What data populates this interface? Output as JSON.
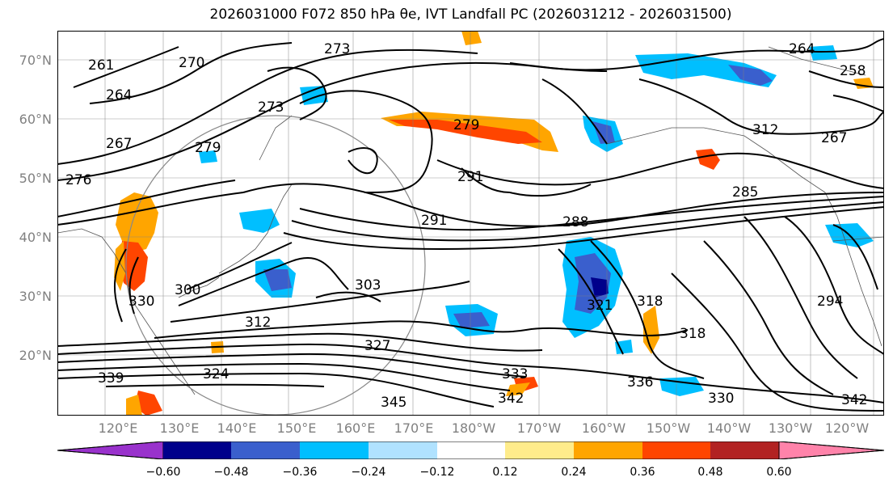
{
  "title": "2026031000 F072 850 hPa θe, IVT Landfall PC (2026031212 - 2026031500)",
  "lat_labels": [
    "70°N",
    "60°N",
    "50°N",
    "40°N",
    "30°N",
    "20°N"
  ],
  "lon_labels": [
    "120°E",
    "130°E",
    "140°E",
    "150°E",
    "160°E",
    "170°E",
    "180°W",
    "170°W",
    "160°W",
    "150°W",
    "140°W",
    "130°W",
    "120°W"
  ],
  "contour_labels": [
    "273",
    "270",
    "264",
    "261",
    "264",
    "258",
    "267",
    "279",
    "273",
    "279",
    "267",
    "291",
    "285",
    "291",
    "288",
    "303",
    "300",
    "312",
    "321",
    "318",
    "318",
    "324",
    "327",
    "330",
    "336",
    "333",
    "342",
    "345",
    "342",
    "339",
    "330",
    "294",
    "312",
    "276"
  ],
  "colorbar": {
    "ticks": [
      "−0.60",
      "−0.48",
      "−0.36",
      "−0.24",
      "−0.12",
      "0.12",
      "0.24",
      "0.36",
      "0.48",
      "0.60"
    ],
    "colors": [
      "#9932cc",
      "#00008b",
      "#3a5fcd",
      "#00bfff",
      "#b0e2ff",
      "#ffffff",
      "#ffec8b",
      "#ffa500",
      "#ff4500",
      "#b22222",
      "#ff83aa"
    ]
  },
  "fill_colors": {
    "orange": "#ffa500",
    "red": "#ff4500",
    "blue": "#00bfff",
    "mid": "#3a5fcd",
    "navy": "#00008b",
    "light": "#b0e2ff",
    "yellow": "#ffec8b"
  }
}
